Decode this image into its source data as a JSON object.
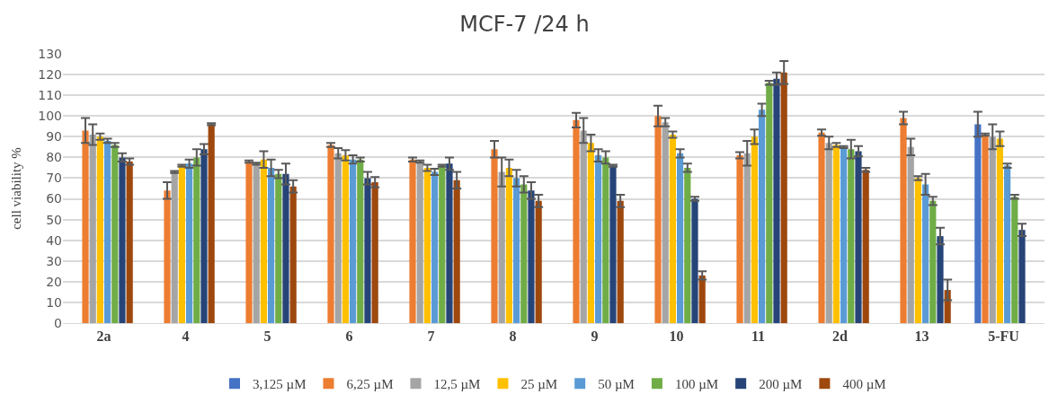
{
  "chart_data": {
    "type": "bar",
    "title": "MCF-7 /24 h",
    "ylabel": "cell viability %",
    "categories": [
      "2a",
      "4",
      "5",
      "6",
      "7",
      "8",
      "9",
      "10",
      "11",
      "2d",
      "13",
      "5-FU"
    ],
    "ylim": [
      0,
      130
    ],
    "yticks": [
      0,
      10,
      20,
      30,
      40,
      50,
      60,
      70,
      80,
      90,
      100,
      110,
      120,
      130
    ],
    "grid": "y",
    "legend": "bottom",
    "series": [
      {
        "name": "3,125 µM",
        "color": "#4472c4",
        "values": [
          null,
          null,
          null,
          null,
          null,
          null,
          null,
          null,
          null,
          null,
          null,
          96
        ],
        "errors": [
          null,
          null,
          null,
          null,
          null,
          null,
          null,
          null,
          null,
          null,
          null,
          6
        ]
      },
      {
        "name": "6,25 µM",
        "color": "#ed7d31",
        "values": [
          93,
          64,
          78,
          86,
          79,
          84,
          98,
          100,
          81,
          92,
          99,
          91
        ],
        "errors": [
          6,
          4,
          0.5,
          1,
          1,
          4,
          3.5,
          5,
          1.5,
          1.5,
          3,
          0.5
        ]
      },
      {
        "name": "12,5 µM",
        "color": "#a5a5a5",
        "values": [
          91,
          73,
          77,
          82,
          78,
          73,
          93,
          97,
          82,
          87,
          85,
          90
        ],
        "errors": [
          5,
          0.5,
          0.5,
          2.5,
          0.5,
          7,
          6,
          2,
          6,
          3,
          4,
          6
        ]
      },
      {
        "name": "25 µM",
        "color": "#ffc000",
        "values": [
          90,
          76,
          79,
          81,
          75,
          75,
          87,
          91,
          90,
          86,
          70,
          89
        ],
        "errors": [
          1.5,
          0.5,
          4,
          2.5,
          1.5,
          4,
          4,
          1.5,
          3.5,
          1,
          1,
          3.5
        ]
      },
      {
        "name": "50 µM",
        "color": "#5b9bd5",
        "values": [
          88,
          77,
          75,
          79,
          73,
          70,
          81,
          82,
          103,
          85,
          67,
          76
        ],
        "errors": [
          1,
          2,
          4,
          2,
          1.5,
          4,
          3,
          2,
          3,
          0.5,
          5,
          1
        ]
      },
      {
        "name": "100 µM",
        "color": "#70ad47",
        "values": [
          86,
          80,
          72,
          79,
          76,
          67,
          80,
          75,
          116,
          84,
          59,
          61
        ],
        "errors": [
          1,
          4,
          2,
          1,
          0.5,
          4,
          3,
          2,
          1,
          4.5,
          2,
          1
        ]
      },
      {
        "name": "200 µM",
        "color": "#264478",
        "values": [
          80,
          84,
          72,
          70,
          77,
          64,
          76,
          60,
          118,
          83,
          42,
          45
        ],
        "errors": [
          2,
          2.5,
          5,
          3,
          3,
          4,
          0.5,
          1,
          3,
          2.5,
          4,
          3
        ]
      },
      {
        "name": "400 µM",
        "color": "#9e480e",
        "values": [
          78,
          96,
          66,
          68,
          69,
          59,
          59,
          23,
          121,
          74,
          16,
          null
        ],
        "errors": [
          1.5,
          0.5,
          3,
          2.5,
          4,
          3,
          3,
          2,
          5.5,
          1,
          5,
          null
        ]
      }
    ]
  }
}
